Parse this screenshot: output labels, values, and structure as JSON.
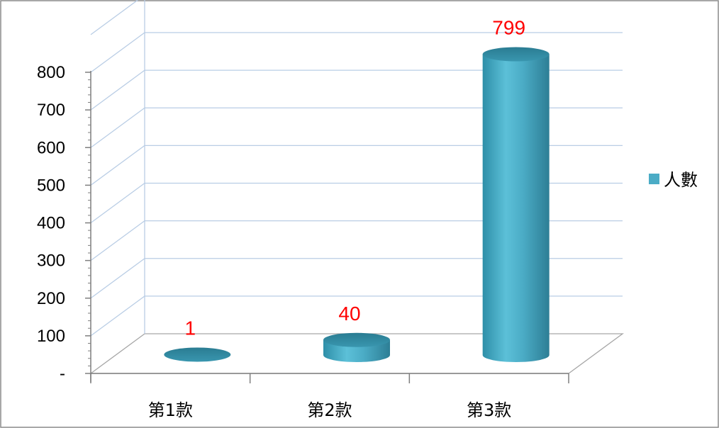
{
  "chart_data": {
    "type": "bar",
    "style": "3d-cylinder",
    "title": "",
    "xlabel": "",
    "ylabel": "",
    "categories": [
      "第1款",
      "第2款",
      "第3款"
    ],
    "series": [
      {
        "name": "人數",
        "values": [
          1,
          40,
          799
        ],
        "color": "#4BACC6"
      }
    ],
    "data_labels": [
      "1",
      "40",
      "799"
    ],
    "data_label_color": "#FF0000",
    "ylim": [
      0,
      800
    ],
    "yticks": [
      0,
      100,
      200,
      300,
      400,
      500,
      600,
      700,
      800
    ],
    "ytick_labels": [
      "-",
      "100",
      "200",
      "300",
      "400",
      "500",
      "600",
      "700",
      "800"
    ],
    "grid": true,
    "grid_color": "#B9CDE5",
    "legend": {
      "position": "right",
      "entries": [
        "人數"
      ]
    }
  }
}
